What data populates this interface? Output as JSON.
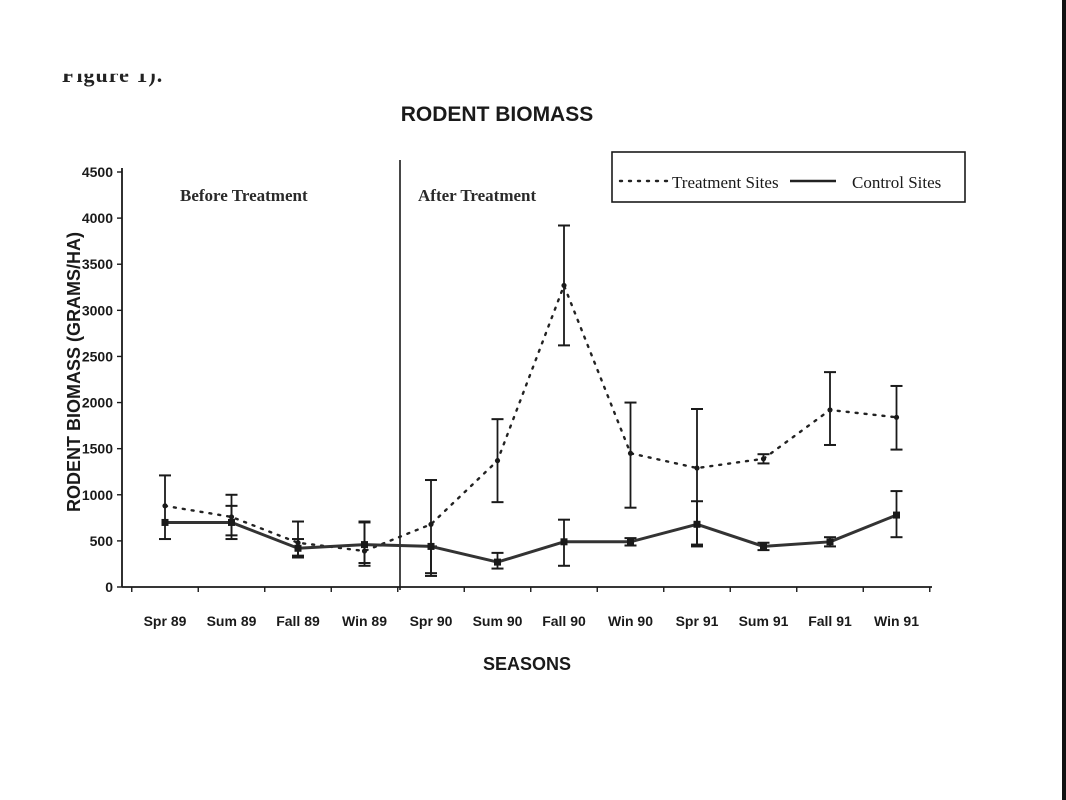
{
  "header": {
    "cropped_caption": "Figure 1)."
  },
  "chart_data": {
    "type": "line",
    "title": "RODENT BIOMASS",
    "xlabel": "SEASONS",
    "ylabel": "RODENT BIOMASS (GRAMS/HA)",
    "ylim": [
      0,
      4500
    ],
    "yticks": [
      0,
      500,
      1000,
      1500,
      2000,
      2500,
      3000,
      3500,
      4000,
      4500
    ],
    "categories": [
      "Spr 89",
      "Sum 89",
      "Fall 89",
      "Win 89",
      "Spr 90",
      "Sum 90",
      "Fall 90",
      "Win 90",
      "Spr 91",
      "Sum 91",
      "Fall 91",
      "Win 91"
    ],
    "periods": [
      {
        "label": "Before Treatment"
      },
      {
        "label": "After Treatment"
      }
    ],
    "legend_position": "top-right",
    "series": [
      {
        "name": "Treatment Sites",
        "style": "dotted",
        "values": [
          880,
          760,
          480,
          390,
          680,
          1370,
          3270,
          1450,
          1290,
          1390,
          1920,
          1840
        ],
        "err_low": [
          520,
          560,
          340,
          260,
          150,
          920,
          2620,
          860,
          460,
          1340,
          1540,
          1490
        ],
        "err_high": [
          1210,
          1000,
          710,
          710,
          1160,
          1820,
          3920,
          2000,
          1930,
          1440,
          2330,
          2180
        ]
      },
      {
        "name": "Control Sites",
        "style": "solid",
        "values": [
          700,
          700,
          420,
          460,
          440,
          270,
          490,
          490,
          680,
          440,
          490,
          780
        ],
        "err_low": [
          700,
          520,
          320,
          230,
          120,
          200,
          230,
          450,
          440,
          400,
          440,
          540
        ],
        "err_high": [
          700,
          880,
          520,
          700,
          440,
          370,
          730,
          530,
          930,
          480,
          540,
          1040
        ]
      }
    ],
    "colors": {
      "ink": "#1a1a1a",
      "control_line": "#333333",
      "treatment_line": "#222222"
    }
  }
}
